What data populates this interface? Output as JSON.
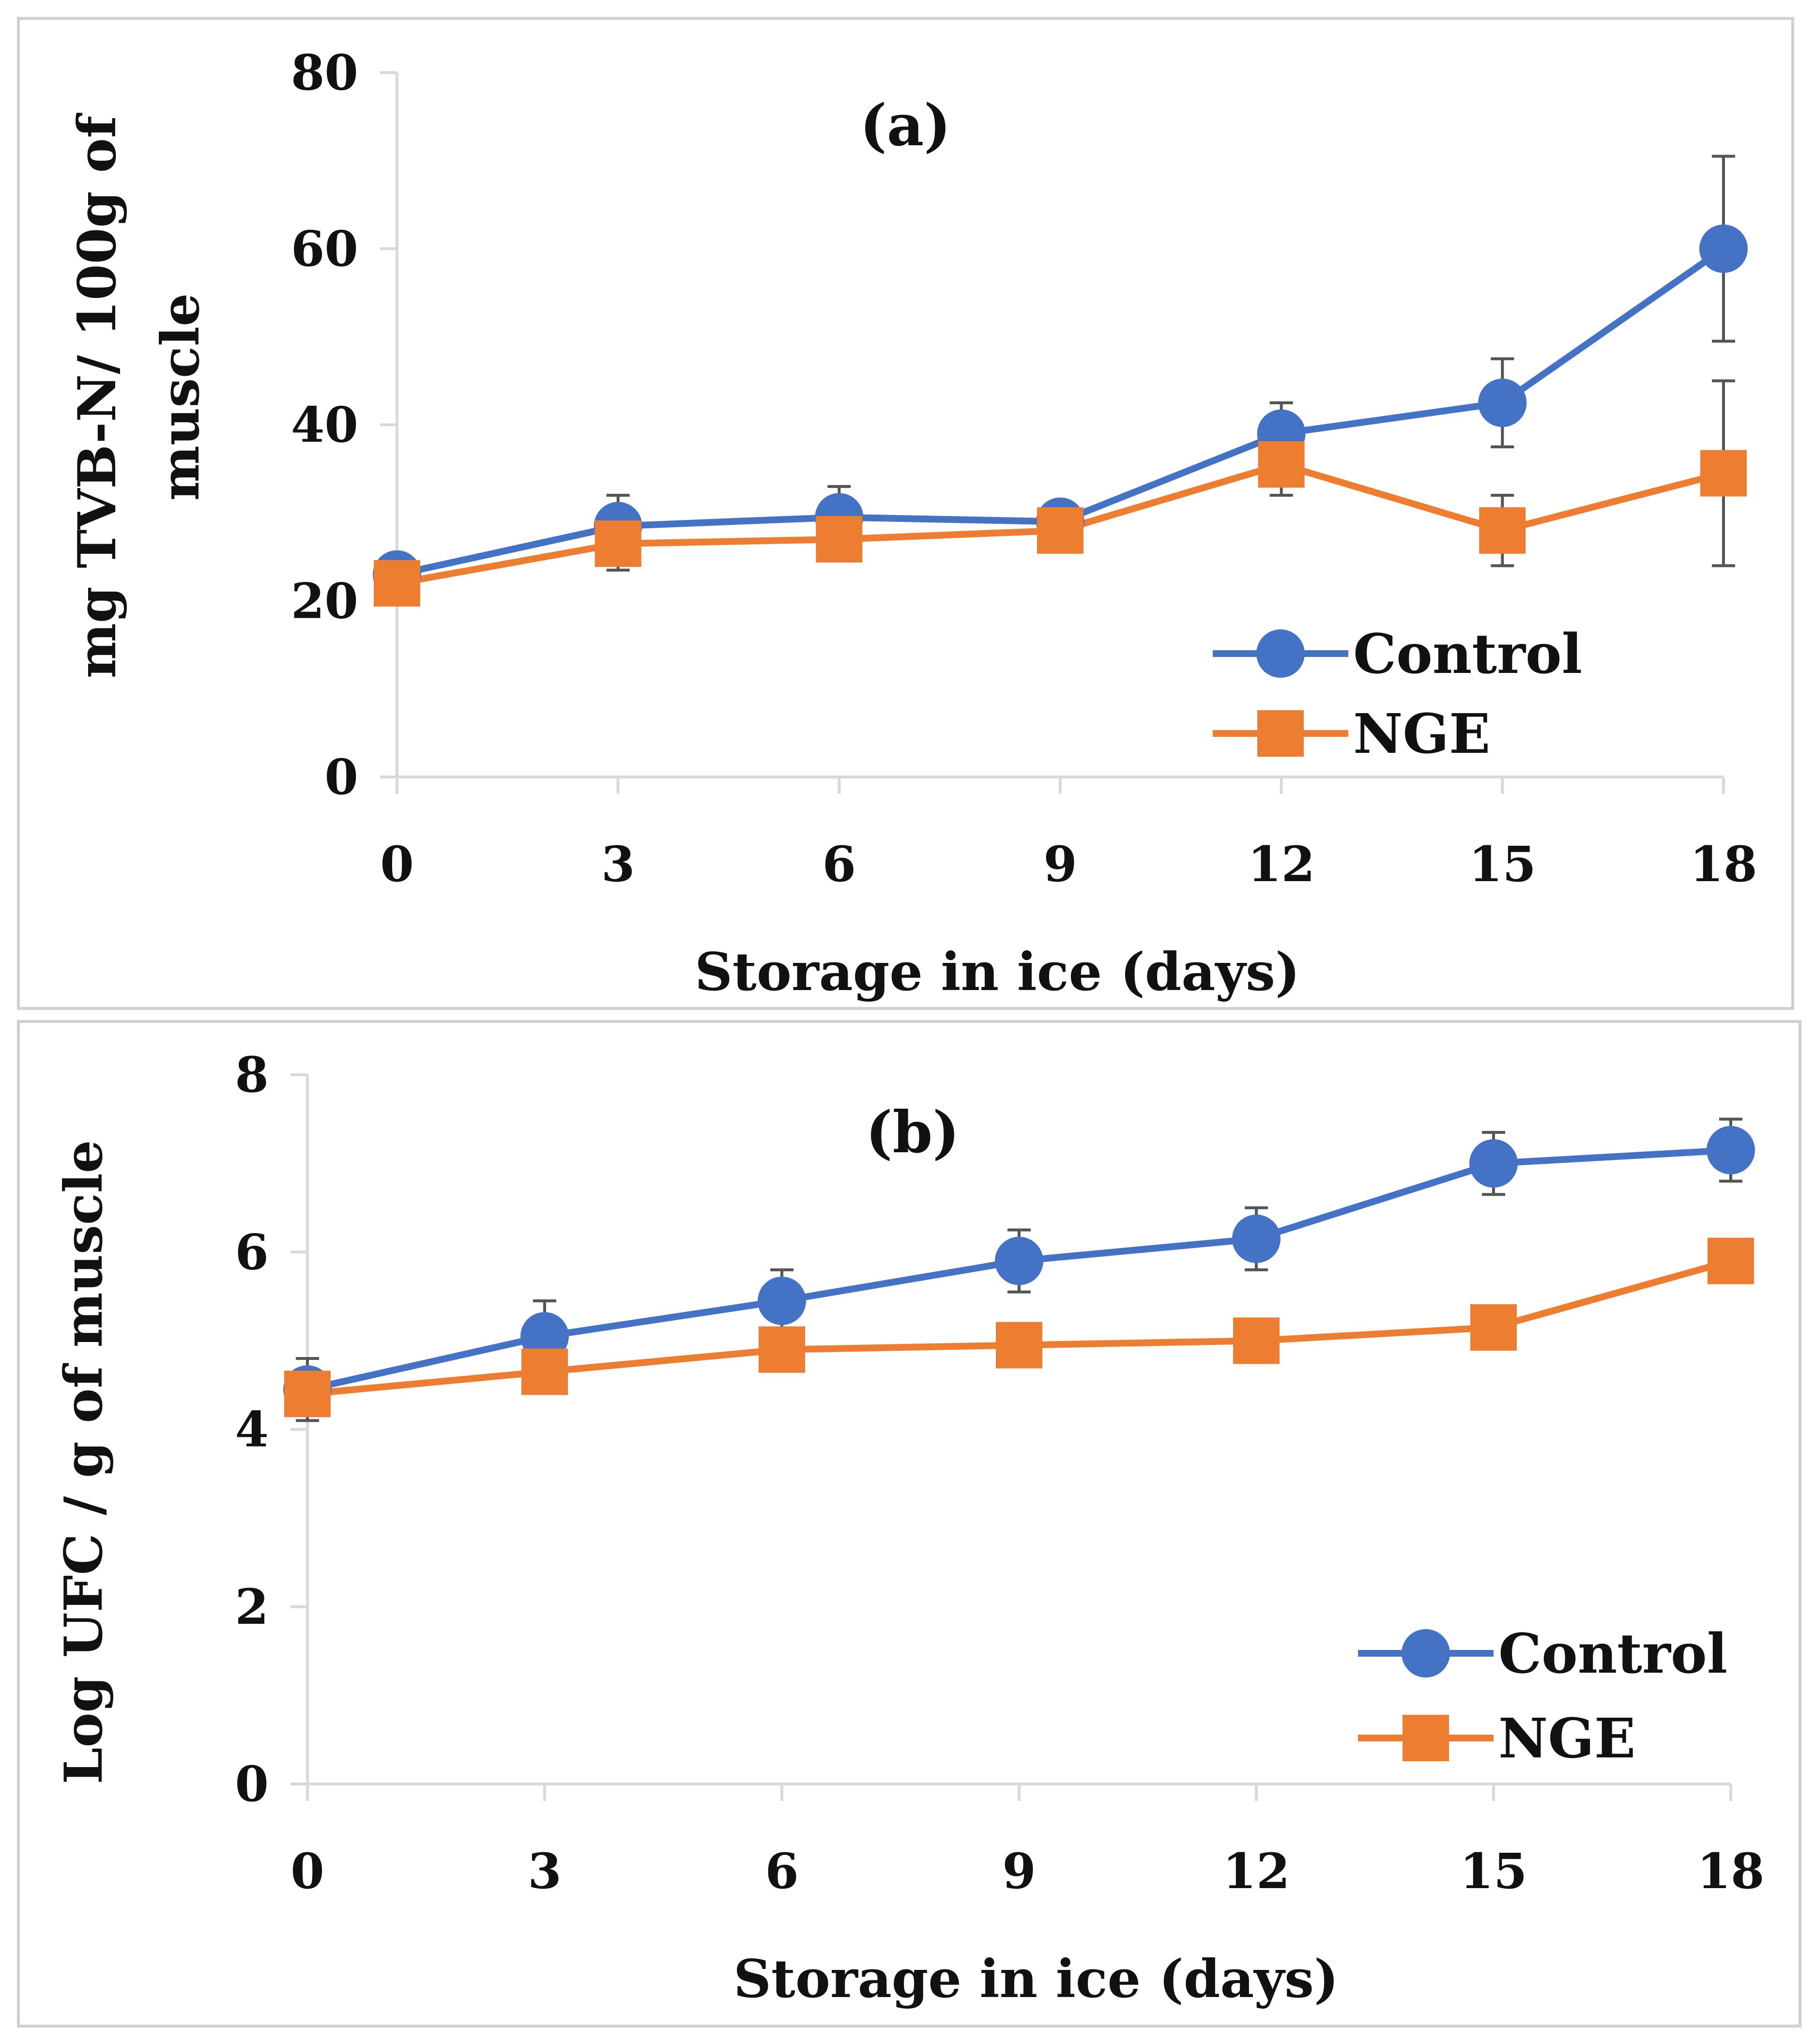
{
  "colors": {
    "control": "#4472C4",
    "nge": "#ED7D31"
  },
  "chart_data": [
    {
      "type": "line",
      "panel_label": "(a)",
      "xlabel": "Storage in ice (days)",
      "ylabel_lines": [
        "mg TVB-N/ 100g of",
        "muscle"
      ],
      "categories": [
        "0",
        "3",
        "6",
        "9",
        "12",
        "15",
        "18"
      ],
      "ylim": [
        0,
        80
      ],
      "yticks": [
        "0",
        "20",
        "40",
        "60",
        "80"
      ],
      "legend": [
        "Control",
        "NGE"
      ],
      "series": [
        {
          "name": "Control",
          "values": [
            23,
            28.5,
            29.5,
            29,
            39,
            42.5,
            60
          ],
          "errors": [
            1,
            3.5,
            3.5,
            1,
            3.5,
            5,
            10.5
          ]
        },
        {
          "name": "NGE",
          "values": [
            22,
            26.5,
            27,
            28,
            35.5,
            28,
            34.5
          ],
          "errors": [
            1,
            3,
            1,
            1,
            3.5,
            4,
            10.5
          ]
        }
      ]
    },
    {
      "type": "line",
      "panel_label": "(b)",
      "xlabel": "Storage in ice (days)",
      "ylabel_lines": [
        "Log UFC / g of muscle"
      ],
      "categories": [
        "0",
        "3",
        "6",
        "9",
        "12",
        "15",
        "18"
      ],
      "ylim": [
        0,
        8
      ],
      "yticks": [
        "0",
        "2",
        "4",
        "6",
        "8"
      ],
      "legend": [
        "Control",
        "NGE"
      ],
      "series": [
        {
          "name": "Control",
          "values": [
            4.45,
            5.05,
            5.45,
            5.9,
            6.15,
            7.0,
            7.15
          ],
          "errors": [
            0.35,
            0.4,
            0.35,
            0.35,
            0.35,
            0.35,
            0.35
          ]
        },
        {
          "name": "NGE",
          "values": [
            4.4,
            4.65,
            4.9,
            4.95,
            5.0,
            5.15,
            5.9
          ],
          "errors": [
            0.1,
            0.1,
            0.1,
            0.1,
            0.1,
            0.1,
            0.1
          ]
        }
      ]
    }
  ]
}
